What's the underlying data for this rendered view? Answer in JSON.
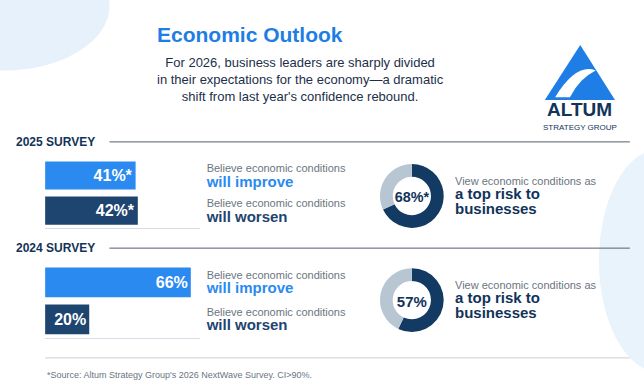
{
  "header": {
    "title": "Economic Outlook",
    "subtitle": [
      "For 2026, business leaders are sharply divided",
      "in their expectations for the economy—a dramatic",
      "shift from last year's confidence rebound."
    ],
    "logo": {
      "name": "ALTUM",
      "tagline": "STRATEGY GROUP"
    }
  },
  "chart_data": [
    {
      "type": "bar",
      "title": "2025 SURVEY",
      "orientation": "horizontal",
      "categories": [
        "Believe economic conditions will improve",
        "Believe economic conditions will worsen"
      ],
      "values": [
        41,
        42
      ],
      "value_labels": [
        "41%*",
        "42%*"
      ],
      "colors": [
        "#2b8af0",
        "#1e4470"
      ],
      "xlim": [
        0,
        70
      ],
      "grid": false,
      "data_labels": true,
      "tick_labels": "y"
    },
    {
      "type": "pie",
      "categories": [
        "View economic conditions as a top risk to businesses",
        null
      ],
      "values": [
        68,
        32
      ],
      "value_labels": [
        "68%*",
        null
      ],
      "colors": [
        "#123a63",
        "#b8c6d4"
      ],
      "data_labels": true
    },
    {
      "type": "bar",
      "title": "2024 SURVEY",
      "orientation": "horizontal",
      "categories": [
        "Believe economic conditions will improve",
        "Believe economic conditions will worsen"
      ],
      "values": [
        66,
        20
      ],
      "value_labels": [
        "66%",
        "20%"
      ],
      "colors": [
        "#2b8af0",
        "#1e4470"
      ],
      "xlim": [
        0,
        70
      ],
      "grid": false,
      "data_labels": true,
      "tick_labels": "y"
    },
    {
      "type": "pie",
      "categories": [
        "View economic conditions as a top risk to businesses",
        null
      ],
      "values": [
        57,
        43
      ],
      "value_labels": [
        "57%",
        null
      ],
      "colors": [
        "#123a63",
        "#b8c6d4"
      ],
      "data_labels": true
    }
  ],
  "source": "*Source: Altum Strategy Group's 2026 NextWave Survey. CI>90%."
}
